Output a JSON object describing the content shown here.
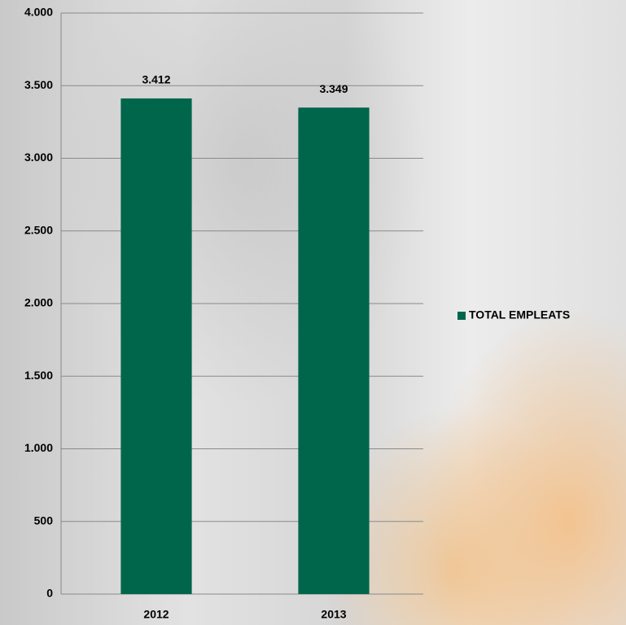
{
  "chart_data": {
    "type": "bar",
    "categories": [
      "2012",
      "2013"
    ],
    "series": [
      {
        "name": "TOTAL EMPLEATS",
        "color": "#00664b",
        "values": [
          3412,
          3349
        ],
        "value_labels": [
          "3.412",
          "3.349"
        ]
      }
    ],
    "ylim": [
      0,
      4000
    ],
    "yticks": [
      0,
      500,
      {
        "value": 1000,
        "label": "1.000"
      },
      {
        "value": 1500,
        "label": "1.500"
      },
      {
        "value": 2000,
        "label": "2.000"
      },
      {
        "value": 2500,
        "label": "2.500"
      },
      {
        "value": 3000,
        "label": "3.000"
      },
      {
        "value": 3500,
        "label": "3.500"
      },
      {
        "value": 4000,
        "label": "4.000"
      }
    ],
    "grid": true,
    "legend": "right"
  }
}
